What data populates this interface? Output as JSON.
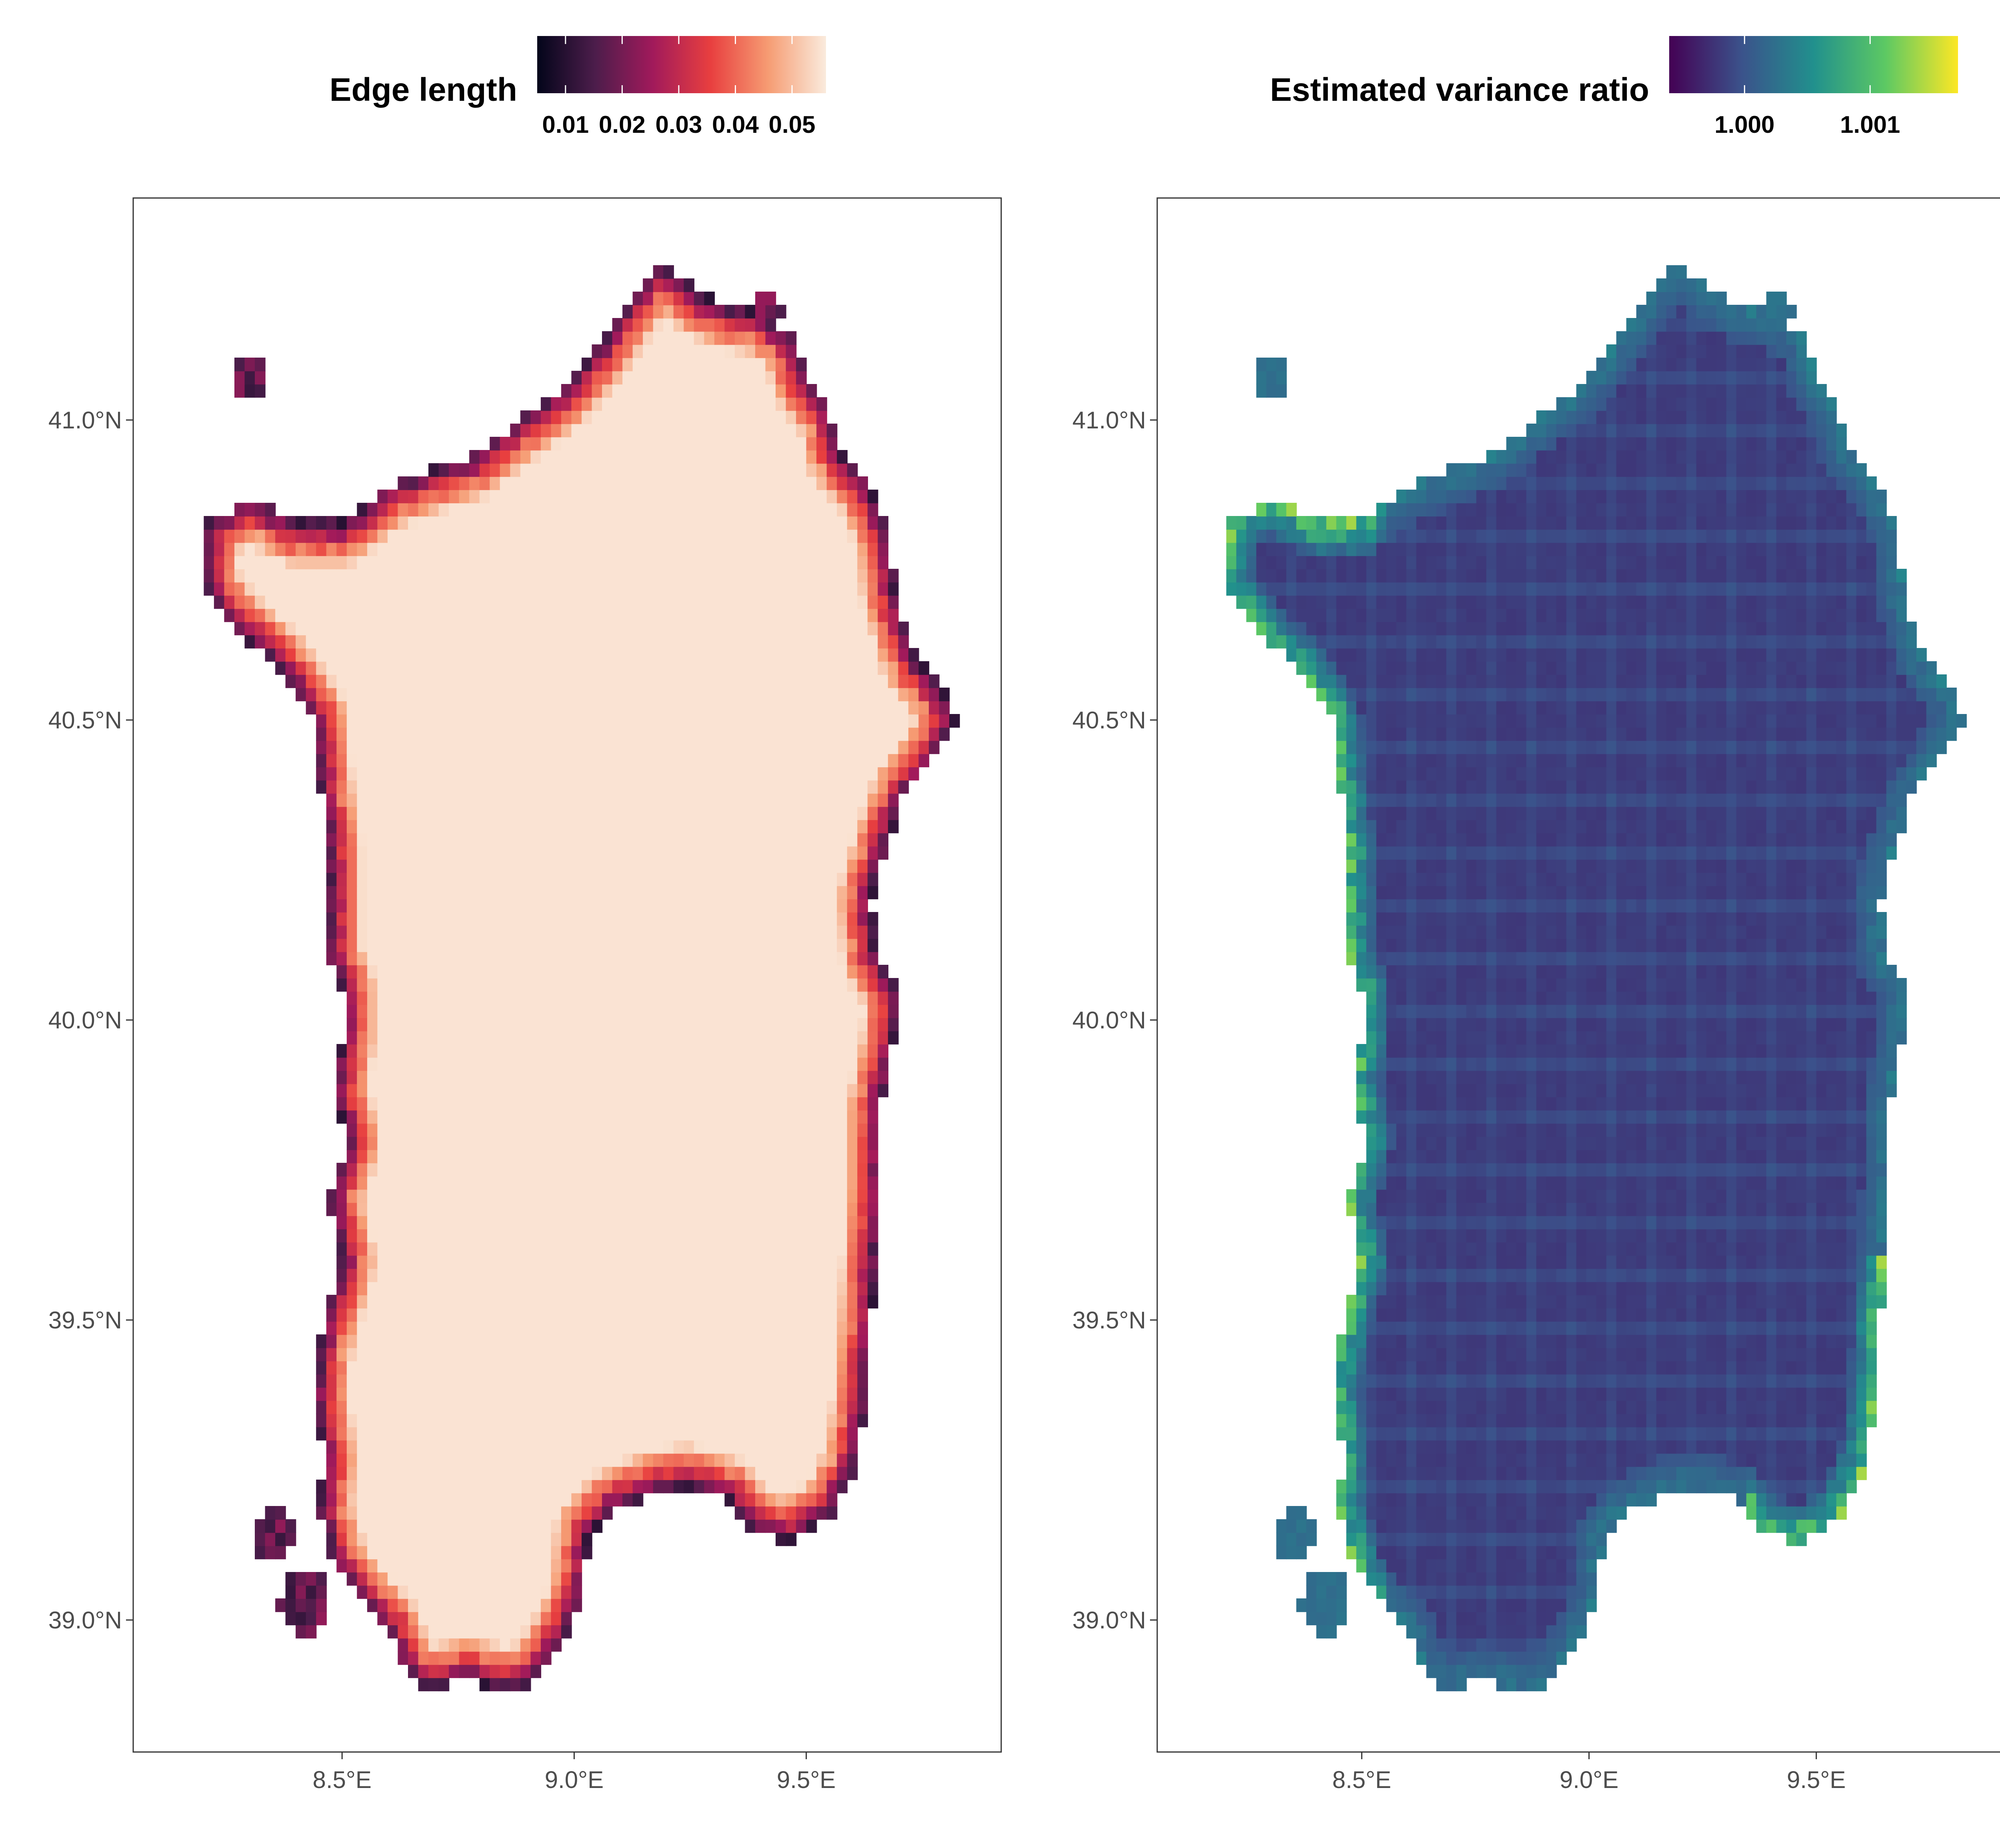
{
  "chart_data": [
    {
      "type": "heatmap",
      "panel": "left",
      "legend_title": "Edge length",
      "legend_ticks": [
        "0.01",
        "0.02",
        "0.03",
        "0.04",
        "0.05"
      ],
      "legend_tick_values": [
        0.01,
        0.02,
        0.03,
        0.04,
        0.05
      ],
      "color_range": [
        0.005,
        0.056
      ],
      "colormap": "rocket",
      "colorscale": [
        "#03051a",
        "#4c1d4b",
        "#a11a5b",
        "#e83f3f",
        "#f69c73",
        "#faebdd"
      ],
      "x_tick_labels": [
        "8.5°E",
        "9.0°E",
        "9.5°E"
      ],
      "x_ticks": [
        8.5,
        9.0,
        9.5
      ],
      "y_tick_labels": [
        "39.0°N",
        "39.5°N",
        "40.0°N",
        "40.5°N",
        "41.0°N"
      ],
      "y_ticks": [
        39.0,
        39.5,
        40.0,
        40.5,
        41.0
      ],
      "xlim": [
        8.05,
        9.92
      ],
      "ylim": [
        38.78,
        41.37
      ],
      "field": "edge length grows from ~0.01 on the Sardinia coastline to ~0.055 in the interior",
      "grid": false
    },
    {
      "type": "heatmap",
      "panel": "right",
      "legend_title": "Estimated variance ratio",
      "legend_ticks": [
        "1.000",
        "1.001"
      ],
      "legend_tick_values": [
        1.0,
        1.001
      ],
      "color_range": [
        0.9994,
        1.0017
      ],
      "colormap": "viridis",
      "colorscale": [
        "#440154",
        "#3b528b",
        "#21908d",
        "#5dc963",
        "#fde725"
      ],
      "x_tick_labels": [
        "8.5°E",
        "9.0°E",
        "9.5°E"
      ],
      "x_ticks": [
        8.5,
        9.0,
        9.5
      ],
      "y_tick_labels": [
        "39.0°N",
        "39.5°N",
        "40.0°N",
        "40.5°N",
        "41.0°N"
      ],
      "y_ticks": [
        39.0,
        39.5,
        40.0,
        40.5,
        41.0
      ],
      "xlim": [
        8.05,
        9.92
      ],
      "ylim": [
        38.78,
        41.37
      ],
      "field": "variance ratio ~0.9998-1.0000 over interior with grid striping; ~1.0005-1.0015 near the west and south-east coasts",
      "grid": false
    }
  ],
  "landmass": {
    "outline_lonlat": [
      [
        9.18,
        41.26
      ],
      [
        9.23,
        41.24
      ],
      [
        9.27,
        41.21
      ],
      [
        9.33,
        41.19
      ],
      [
        9.4,
        41.18
      ],
      [
        9.47,
        41.14
      ],
      [
        9.5,
        41.07
      ],
      [
        9.55,
        41.02
      ],
      [
        9.57,
        40.95
      ],
      [
        9.63,
        40.9
      ],
      [
        9.68,
        40.81
      ],
      [
        9.69,
        40.72
      ],
      [
        9.73,
        40.61
      ],
      [
        9.8,
        40.54
      ],
      [
        9.82,
        40.5
      ],
      [
        9.77,
        40.43
      ],
      [
        9.71,
        40.37
      ],
      [
        9.67,
        40.28
      ],
      [
        9.64,
        40.2
      ],
      [
        9.65,
        40.11
      ],
      [
        9.7,
        40.05
      ],
      [
        9.69,
        39.96
      ],
      [
        9.66,
        39.85
      ],
      [
        9.66,
        39.72
      ],
      [
        9.65,
        39.6
      ],
      [
        9.64,
        39.48
      ],
      [
        9.63,
        39.37
      ],
      [
        9.61,
        39.26
      ],
      [
        9.55,
        39.17
      ],
      [
        9.46,
        39.13
      ],
      [
        9.38,
        39.15
      ],
      [
        9.33,
        39.2
      ],
      [
        9.24,
        39.22
      ],
      [
        9.17,
        39.21
      ],
      [
        9.08,
        39.18
      ],
      [
        9.03,
        39.14
      ],
      [
        9.02,
        39.04
      ],
      [
        8.98,
        38.97
      ],
      [
        8.92,
        38.9
      ],
      [
        8.86,
        38.88
      ],
      [
        8.77,
        38.9
      ],
      [
        8.68,
        38.88
      ],
      [
        8.63,
        38.92
      ],
      [
        8.6,
        38.98
      ],
      [
        8.54,
        39.03
      ],
      [
        8.49,
        39.08
      ],
      [
        8.45,
        39.18
      ],
      [
        8.46,
        39.27
      ],
      [
        8.44,
        39.38
      ],
      [
        8.45,
        39.45
      ],
      [
        8.47,
        39.52
      ],
      [
        8.5,
        39.6
      ],
      [
        8.47,
        39.7
      ],
      [
        8.51,
        39.8
      ],
      [
        8.48,
        39.89
      ],
      [
        8.5,
        39.97
      ],
      [
        8.5,
        40.05
      ],
      [
        8.47,
        40.1
      ],
      [
        8.47,
        40.2
      ],
      [
        8.47,
        40.29
      ],
      [
        8.45,
        40.4
      ],
      [
        8.44,
        40.5
      ],
      [
        8.37,
        40.58
      ],
      [
        8.27,
        40.65
      ],
      [
        8.2,
        40.72
      ],
      [
        8.21,
        40.83
      ],
      [
        8.3,
        40.87
      ],
      [
        8.4,
        40.83
      ],
      [
        8.5,
        40.83
      ],
      [
        8.6,
        40.89
      ],
      [
        8.7,
        40.92
      ],
      [
        8.78,
        40.94
      ],
      [
        8.88,
        41.0
      ],
      [
        8.97,
        41.05
      ],
      [
        9.05,
        41.12
      ],
      [
        9.12,
        41.2
      ]
    ],
    "islets_lonlat": [
      {
        "lon": 8.3,
        "lat": 41.07,
        "r": 0.035
      },
      {
        "lon": 8.35,
        "lat": 39.14,
        "r": 0.045
      },
      {
        "lon": 8.42,
        "lat": 39.03,
        "r": 0.055
      },
      {
        "lon": 9.42,
        "lat": 41.18,
        "r": 0.03
      },
      {
        "lon": 9.53,
        "lat": 40.95,
        "r": 0.03
      }
    ]
  }
}
